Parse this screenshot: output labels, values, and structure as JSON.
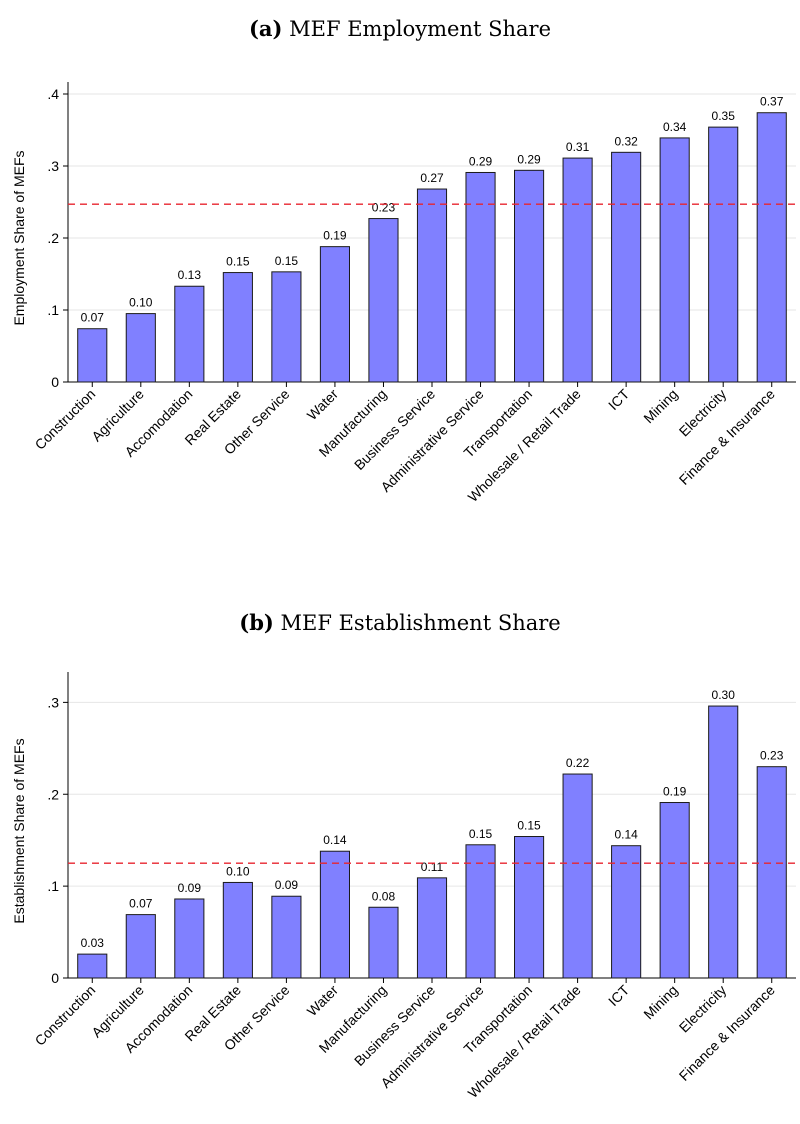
{
  "panels": [
    {
      "label": "(a)",
      "title": "MEF Employment Share"
    },
    {
      "label": "(b)",
      "title": "MEF Establishment Share"
    }
  ],
  "colors": {
    "bar_fill": "#8080ff",
    "bar_stroke": "#1a1a1a",
    "reference_line": "#e8242f",
    "grid": "#e6e6e6"
  },
  "chart_data": [
    {
      "type": "bar",
      "title": "MEF Employment Share",
      "xlabel": "",
      "ylabel": "Employment Share of MEFs",
      "categories": [
        "Construction",
        "Agriculture",
        "Accomodation",
        "Real Estate",
        "Other Service",
        "Water",
        "Manufacturing",
        "Business Service",
        "Administrative Service",
        "Transportation",
        "Wholesale / Retail Trade",
        "ICT",
        "Mining",
        "Electricity",
        "Finance & Insurance"
      ],
      "values": [
        0.074,
        0.095,
        0.133,
        0.152,
        0.153,
        0.188,
        0.227,
        0.268,
        0.291,
        0.294,
        0.311,
        0.319,
        0.339,
        0.354,
        0.374
      ],
      "value_labels": [
        "0.07",
        "0.10",
        "0.13",
        "0.15",
        "0.15",
        "0.19",
        "0.23",
        "0.27",
        "0.29",
        "0.29",
        "0.31",
        "0.32",
        "0.34",
        "0.35",
        "0.37"
      ],
      "ylim": [
        0,
        0.4
      ],
      "yticks": [
        0,
        0.1,
        0.2,
        0.3,
        0.4
      ],
      "ytick_labels": [
        "0",
        ".1",
        ".2",
        ".3",
        ".4"
      ],
      "reference_line": 0.247,
      "grid": true
    },
    {
      "type": "bar",
      "title": "MEF Establishment Share",
      "xlabel": "",
      "ylabel": "Establishment Share of MEFs",
      "categories": [
        "Construction",
        "Agriculture",
        "Accomodation",
        "Real Estate",
        "Other Service",
        "Water",
        "Manufacturing",
        "Business Service",
        "Administrative Service",
        "Transportation",
        "Wholesale / Retail Trade",
        "ICT",
        "Mining",
        "Electricity",
        "Finance & Insurance"
      ],
      "values": [
        0.026,
        0.069,
        0.086,
        0.104,
        0.089,
        0.138,
        0.077,
        0.109,
        0.145,
        0.154,
        0.222,
        0.144,
        0.191,
        0.296,
        0.23
      ],
      "value_labels": [
        "0.03",
        "0.07",
        "0.09",
        "0.10",
        "0.09",
        "0.14",
        "0.08",
        "0.11",
        "0.15",
        "0.15",
        "0.22",
        "0.14",
        "0.19",
        "0.30",
        "0.23"
      ],
      "ylim": [
        0,
        0.32
      ],
      "yticks": [
        0,
        0.1,
        0.2,
        0.3
      ],
      "ytick_labels": [
        "0",
        ".1",
        ".2",
        ".3"
      ],
      "reference_line": 0.125,
      "grid": true
    }
  ]
}
